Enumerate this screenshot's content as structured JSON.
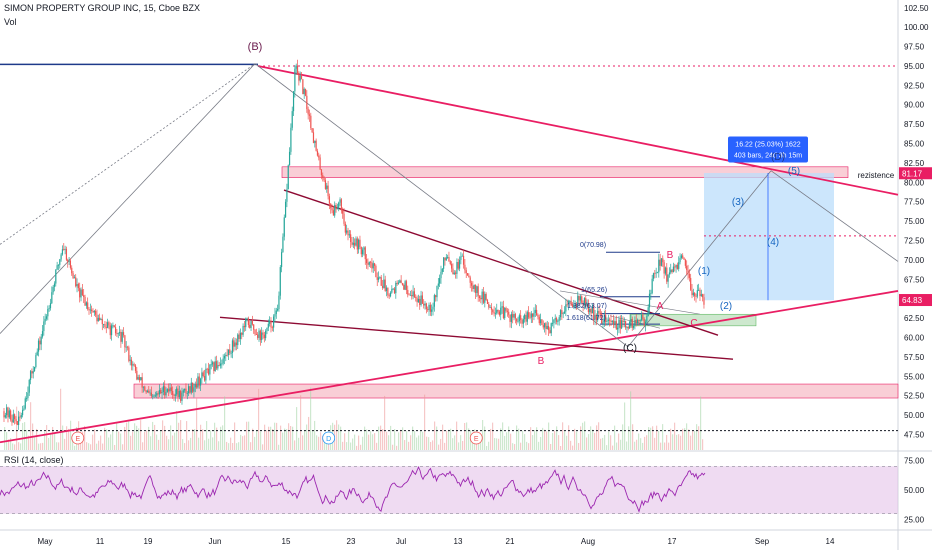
{
  "header": {
    "title": "SIMON PROPERTY GROUP INC, 15, Cboe BZX",
    "volume_label": "Vol"
  },
  "rsi_panel": {
    "label": "RSI (14, close)"
  },
  "colors": {
    "price_line": "#e91e63",
    "pink": "#e91e63",
    "maroon": "#8e0a33",
    "candle_up": "#26a69a",
    "candle_down": "#ef5350",
    "blue_box": "#2962ff",
    "rsi": "#9c27b0",
    "rsi_band": "#e1bee7"
  },
  "chart_data": [
    {
      "type": "candlestick",
      "title": "SIMON PROPERTY GROUP INC, 15, Cboe BZX",
      "y_axis": {
        "position": "right",
        "ylim": [
          45.5,
          103.5
        ],
        "ticks": [
          "102.50",
          "100.00",
          "97.50",
          "95.00",
          "92.50",
          "90.00",
          "87.50",
          "85.00",
          "82.50",
          "80.00",
          "77.50",
          "75.00",
          "72.50",
          "70.00",
          "67.50",
          "65.00",
          "62.50",
          "60.00",
          "57.50",
          "55.00",
          "52.50",
          "50.00",
          "47.50"
        ]
      },
      "x_axis": {
        "ticks": [
          "May",
          "11",
          "19",
          "Jun",
          "15",
          "23",
          "Jul",
          "13",
          "21",
          "Aug",
          "17",
          "Sep",
          "14"
        ]
      },
      "price_series_anchors": [
        [
          0,
          50.5
        ],
        [
          2,
          49.0
        ],
        [
          5,
          60.0
        ],
        [
          8,
          72.0
        ],
        [
          10,
          66.0
        ],
        [
          13,
          62.0
        ],
        [
          16,
          60.0
        ],
        [
          18,
          55.0
        ],
        [
          20,
          52.0
        ],
        [
          22,
          53.5
        ],
        [
          24,
          52.5
        ],
        [
          27,
          55.0
        ],
        [
          30,
          57.5
        ],
        [
          33,
          62.0
        ],
        [
          35,
          60.0
        ],
        [
          37,
          63.0
        ],
        [
          38,
          75.0
        ],
        [
          39.5,
          95.0
        ],
        [
          40.5,
          92.0
        ],
        [
          41.5,
          88.0
        ],
        [
          42.5,
          83.0
        ],
        [
          43.5,
          80.0
        ],
        [
          44.5,
          76.0
        ],
        [
          45.5,
          78.0
        ],
        [
          46.5,
          73.0
        ],
        [
          48,
          72.0
        ],
        [
          50,
          69.0
        ],
        [
          52,
          66.0
        ],
        [
          54,
          67.0
        ],
        [
          56,
          65.0
        ],
        [
          58,
          64.0
        ],
        [
          60,
          71.0
        ],
        [
          61,
          68.5
        ],
        [
          62,
          70.0
        ],
        [
          64,
          66.0
        ],
        [
          66,
          64.0
        ],
        [
          68,
          63.0
        ],
        [
          70,
          62.0
        ],
        [
          72,
          63.0
        ],
        [
          74,
          61.0
        ],
        [
          76,
          64.0
        ],
        [
          78,
          65.0
        ],
        [
          80,
          63.0
        ],
        [
          82,
          62.0
        ],
        [
          84,
          61.5
        ],
        [
          86,
          62.0
        ],
        [
          87,
          62.5
        ],
        [
          88,
          68.0
        ],
        [
          89,
          70.0
        ],
        [
          90,
          67.5
        ],
        [
          91,
          69.0
        ],
        [
          92,
          70.0
        ],
        [
          93,
          66.5
        ],
        [
          94,
          65.5
        ],
        [
          95,
          64.8
        ]
      ],
      "last_price": "64.83",
      "price_marker_81": "81.17",
      "measure_box": {
        "line1": "16.22 (25.03%) 1622",
        "line2": "403 bars, 24d 3h 15m"
      },
      "annotations": {
        "wave_top": "(B)",
        "wave_A": "A",
        "wave_B_small": "B",
        "wave_C_small": "C",
        "wave_B_low": "B",
        "wave_C_paren": "(C)",
        "wave_D": "(D)",
        "wave_1": "(1)",
        "wave_2": "(2)",
        "wave_3": "(3)",
        "wave_4": "(4)",
        "wave_5": "(5)",
        "resistance": "rezistence",
        "fib_0": "0(70.98)",
        "fib_1": "1(65.26)",
        "fib_1382": "1.382(63.07)",
        "fib_1618": "1.618(61.72)"
      },
      "earnings_markers": [
        {
          "label": "E",
          "x_index": 10,
          "color": "#ef5350"
        },
        {
          "label": "D",
          "x_index": 44,
          "color": "#2196f3"
        },
        {
          "label": "E",
          "x_index": 64,
          "color": "#ef5350"
        }
      ]
    },
    {
      "type": "line",
      "title": "RSI (14, close)",
      "y_axis": {
        "ylim": [
          18,
          82
        ],
        "ticks": [
          "75.00",
          "50.00",
          "25.00"
        ],
        "band": [
          30,
          70
        ]
      },
      "x_axis": {
        "ticks": [
          "May",
          "11",
          "19",
          "Jun",
          "15",
          "23",
          "Jul",
          "13",
          "21",
          "Aug",
          "17",
          "Sep",
          "14"
        ]
      },
      "seed": 7
    }
  ]
}
